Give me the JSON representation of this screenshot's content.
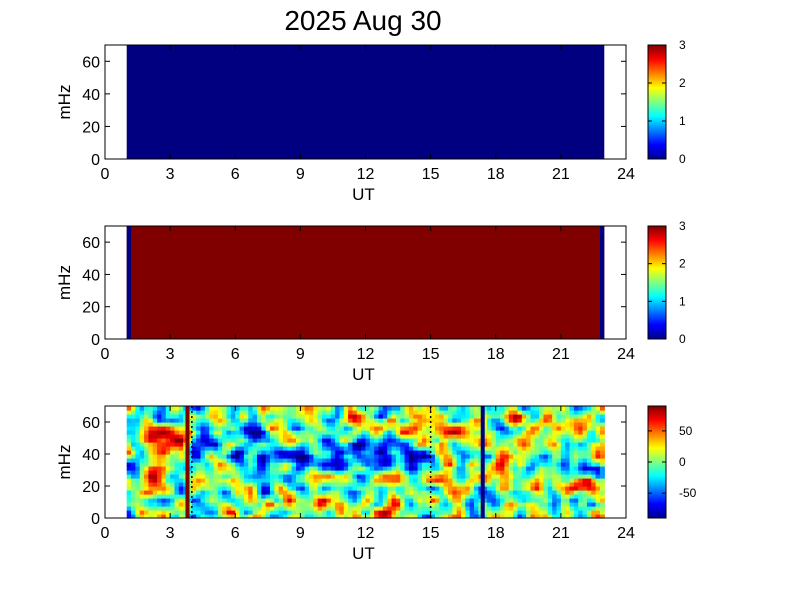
{
  "chart_data": [
    {
      "type": "heatmap",
      "title": "2025 Aug 30",
      "xlabel": "UT",
      "ylabel": "mHz",
      "xlim": [
        0,
        24
      ],
      "ylim": [
        0,
        70
      ],
      "xticks": [
        "0",
        "3",
        "6",
        "9",
        "12",
        "15",
        "18",
        "21",
        "24"
      ],
      "yticks": [
        "0",
        "20",
        "40",
        "60"
      ],
      "data_x_range": [
        1,
        23
      ],
      "fill_value": 0,
      "colorbar": {
        "min": 0,
        "max": 3,
        "ticks": [
          "0",
          "1",
          "2",
          "3"
        ]
      },
      "colormap": "jet"
    },
    {
      "type": "heatmap",
      "xlabel": "UT",
      "ylabel": "mHz",
      "xlim": [
        0,
        24
      ],
      "ylim": [
        0,
        70
      ],
      "xticks": [
        "0",
        "3",
        "6",
        "9",
        "12",
        "15",
        "18",
        "21",
        "24"
      ],
      "yticks": [
        "0",
        "20",
        "40",
        "60"
      ],
      "data_x_range": [
        1,
        23
      ],
      "fill_value": 3,
      "edge_bands": [
        {
          "x_range": [
            1.0,
            1.2
          ],
          "value": 0
        },
        {
          "x_range": [
            22.8,
            23.0
          ],
          "value": 0
        }
      ],
      "colorbar": {
        "min": 0,
        "max": 3,
        "ticks": [
          "0",
          "1",
          "2",
          "3"
        ]
      },
      "colormap": "jet"
    },
    {
      "type": "heatmap",
      "xlabel": "UT",
      "ylabel": "mHz",
      "xlim": [
        0,
        24
      ],
      "ylim": [
        0,
        70
      ],
      "xticks": [
        "0",
        "3",
        "6",
        "9",
        "12",
        "15",
        "18",
        "21",
        "24"
      ],
      "yticks": [
        "0",
        "20",
        "40",
        "60"
      ],
      "data_x_range": [
        1,
        23
      ],
      "value_range": [
        -90,
        90
      ],
      "vertical_lines": [
        {
          "x": 3.8,
          "value": 90
        },
        {
          "x": 17.4,
          "value": -90
        }
      ],
      "dotted_lines": [
        4.0,
        15.0
      ],
      "low_blobs": [
        {
          "x": 10.5,
          "y": 42,
          "sx": 2.2,
          "sy": 6,
          "amp": -60
        },
        {
          "x": 8.0,
          "y": 38,
          "sx": 1.8,
          "sy": 4,
          "amp": -40
        },
        {
          "x": 13.5,
          "y": 36,
          "sx": 1.5,
          "sy": 4,
          "amp": -35
        },
        {
          "x": 6.5,
          "y": 55,
          "sx": 1.2,
          "sy": 5,
          "amp": -30
        },
        {
          "x": 19.5,
          "y": 15,
          "sx": 1.5,
          "sy": 5,
          "amp": -25
        }
      ],
      "high_blobs": [
        {
          "x": 2.2,
          "y": 50,
          "sx": 0.8,
          "sy": 5,
          "amp": 45
        },
        {
          "x": 20.5,
          "y": 60,
          "sx": 1.0,
          "sy": 4,
          "amp": 50
        },
        {
          "x": 21.5,
          "y": 20,
          "sx": 1.0,
          "sy": 4,
          "amp": 45
        },
        {
          "x": 11.0,
          "y": 8,
          "sx": 1.5,
          "sy": 4,
          "amp": 30
        },
        {
          "x": 16.0,
          "y": 55,
          "sx": 1.2,
          "sy": 4,
          "amp": 30
        }
      ],
      "colorbar": {
        "min": -90,
        "max": 90,
        "ticks": [
          "50",
          "0",
          "-50"
        ],
        "tick_values": [
          50,
          0,
          -50
        ]
      },
      "colormap": "jet"
    }
  ]
}
